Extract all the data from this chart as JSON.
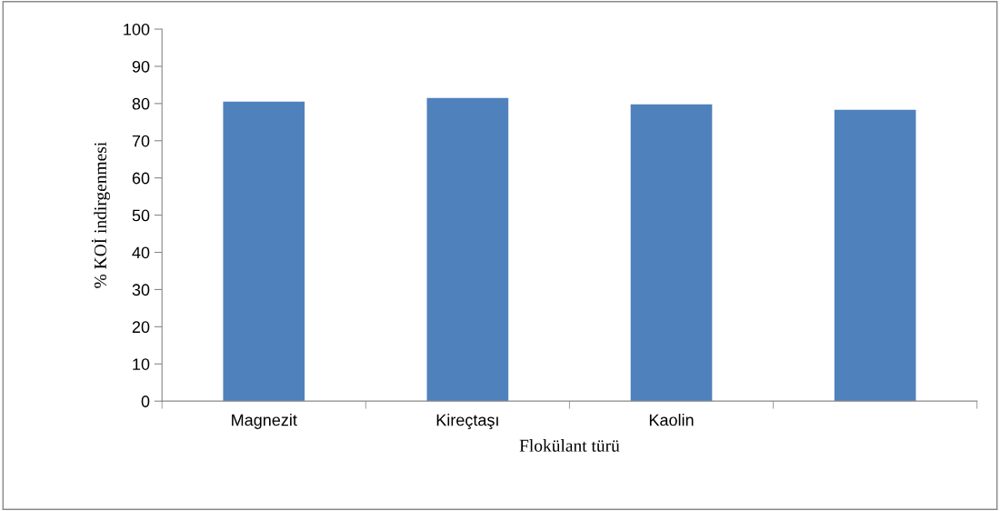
{
  "chart_data": {
    "type": "bar",
    "xlabel": "Flokülant türü",
    "ylabel": "% KOİ indirgenmesi",
    "categories": [
      "Magnezit",
      "Kireçtaşı",
      "Kaolin",
      null
    ],
    "values": [
      80.5,
      81.5,
      79.8,
      78.3
    ],
    "color": "#4f81bd",
    "ylim": [
      0,
      100
    ],
    "yticks": [
      0,
      10,
      20,
      30,
      40,
      50,
      60,
      70,
      80,
      90,
      100
    ],
    "grid": false,
    "legend": false
  }
}
